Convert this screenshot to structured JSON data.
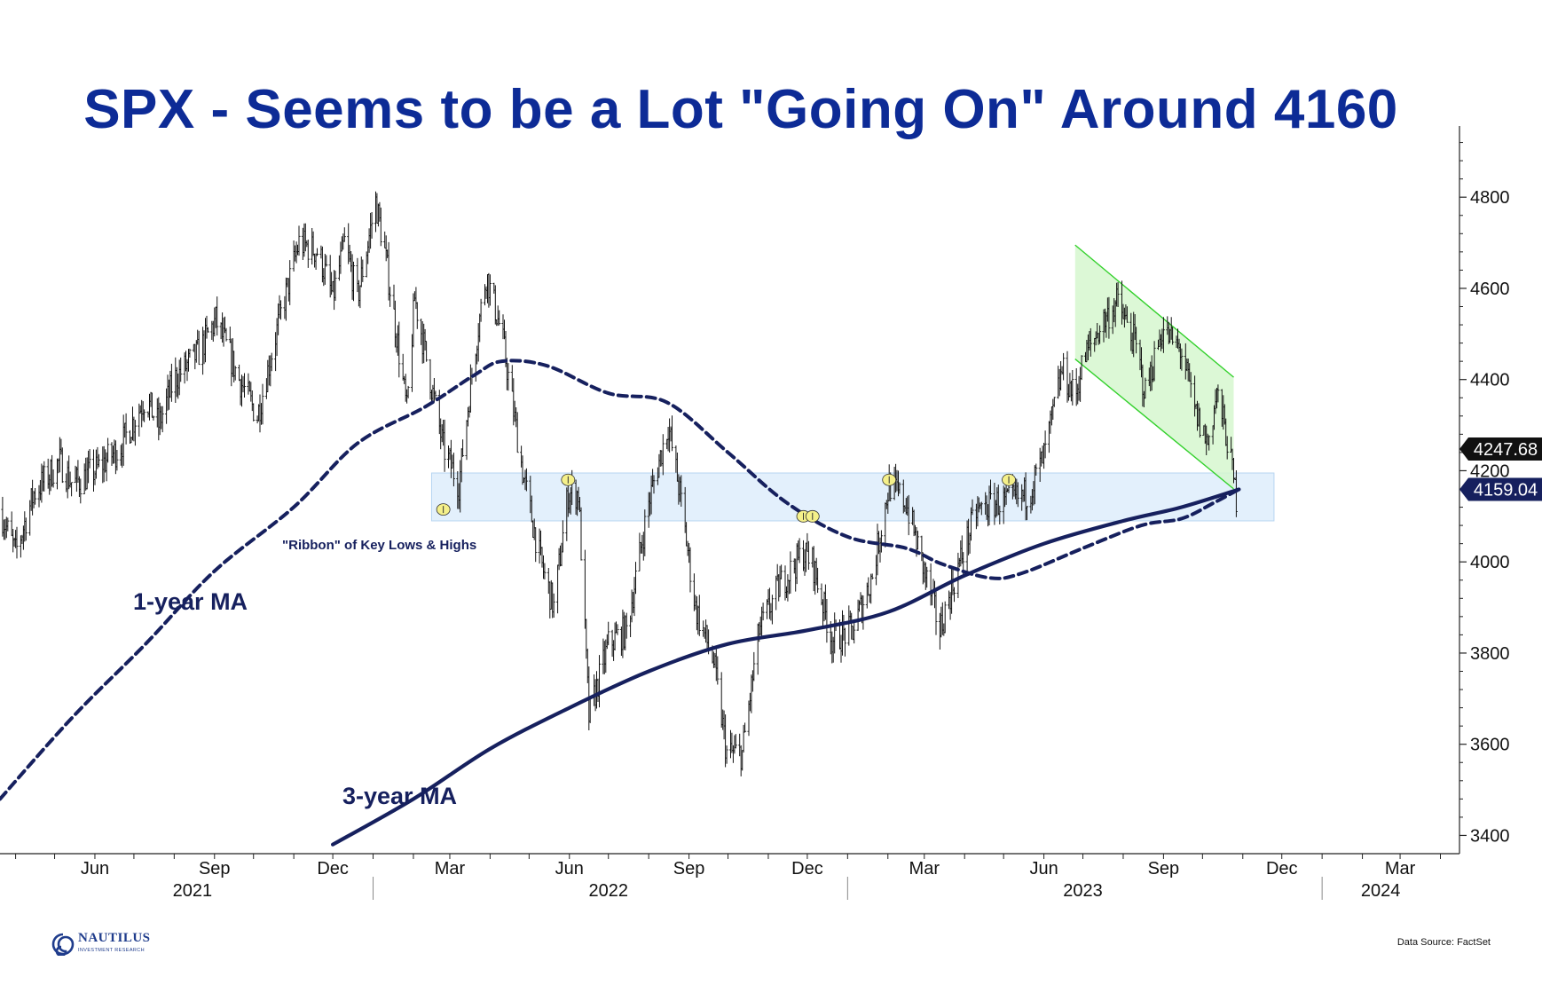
{
  "title": "SPX - Seems to be a Lot \"Going On\" Around 4160",
  "source_note": "Data Source: FactSet",
  "logo": {
    "name": "NAUTILUS",
    "tagline": "INVESTMENT RESEARCH"
  },
  "colors": {
    "title": "#0d2b96",
    "ma": "#16205e",
    "ribbon_fill": "#e3f0fc",
    "ribbon_stroke": "#b7d5f2",
    "channel_fill": "#d6f7cf",
    "channel_stroke": "#33d12c",
    "marker": "#f5f08a",
    "price": "#111111"
  },
  "annotations": {
    "ribbon": "\"Ribbon\" of Key Lows & Highs",
    "ma1": "1-year MA",
    "ma3": "3-year MA"
  },
  "chart_data": {
    "type": "line",
    "title": "SPX - Seems to be a Lot \"Going On\" Around 4160",
    "xlabel": "",
    "ylabel": "",
    "x_range": [
      "2021-03-20",
      "2024-04-15"
    ],
    "ylim": [
      3360,
      4960
    ],
    "y_ticks": [
      3400,
      3600,
      3800,
      4000,
      4200,
      4400,
      4600,
      4800
    ],
    "x_month_ticks": [
      {
        "label": "Jun",
        "date": "2021-06-01"
      },
      {
        "label": "Sep",
        "date": "2021-09-01"
      },
      {
        "label": "Dec",
        "date": "2021-12-01"
      },
      {
        "label": "Mar",
        "date": "2022-03-01"
      },
      {
        "label": "Jun",
        "date": "2022-06-01"
      },
      {
        "label": "Sep",
        "date": "2022-09-01"
      },
      {
        "label": "Dec",
        "date": "2022-12-01"
      },
      {
        "label": "Mar",
        "date": "2023-03-01"
      },
      {
        "label": "Jun",
        "date": "2023-06-01"
      },
      {
        "label": "Sep",
        "date": "2023-09-01"
      },
      {
        "label": "Dec",
        "date": "2023-12-01"
      },
      {
        "label": "Mar",
        "date": "2024-03-01"
      }
    ],
    "x_year_labels": [
      {
        "label": "2021",
        "date": "2021-08-15"
      },
      {
        "label": "2022",
        "date": "2022-07-01"
      },
      {
        "label": "2023",
        "date": "2023-07-01"
      },
      {
        "label": "2024",
        "date": "2024-02-15"
      }
    ],
    "year_boundaries": [
      "2022-01-01",
      "2023-01-01",
      "2024-01-01"
    ],
    "last_values": [
      {
        "label": "4247.68",
        "value": 4247.68
      },
      {
        "label": "4159.04",
        "value": 4159.04
      }
    ],
    "ribbon": {
      "from": "2022-02-15",
      "to": "2023-11-25",
      "low": 4090,
      "high": 4195
    },
    "channel": {
      "upper_start": {
        "date": "2023-06-25",
        "value": 4695
      },
      "upper_end": {
        "date": "2023-10-25",
        "value": 4405
      },
      "lower_start": {
        "date": "2023-06-25",
        "value": 4445
      },
      "lower_end": {
        "date": "2023-10-25",
        "value": 4160
      }
    },
    "key_points": [
      {
        "date": "2022-02-24",
        "value": 4115
      },
      {
        "date": "2022-05-31",
        "value": 4180
      },
      {
        "date": "2022-11-28",
        "value": 4100
      },
      {
        "date": "2022-12-05",
        "value": 4100
      },
      {
        "date": "2023-02-02",
        "value": 4180
      },
      {
        "date": "2023-05-05",
        "value": 4180
      }
    ],
    "series": [
      {
        "name": "SPX",
        "style": "daily-bars",
        "points": [
          [
            "2021-03-20",
            4115
          ],
          [
            "2021-04-01",
            4020
          ],
          [
            "2021-04-15",
            4150
          ],
          [
            "2021-05-05",
            4220
          ],
          [
            "2021-05-15",
            4170
          ],
          [
            "2021-06-01",
            4200
          ],
          [
            "2021-06-20",
            4250
          ],
          [
            "2021-07-10",
            4360
          ],
          [
            "2021-07-20",
            4300
          ],
          [
            "2021-08-01",
            4400
          ],
          [
            "2021-08-20",
            4460
          ],
          [
            "2021-09-02",
            4530
          ],
          [
            "2021-09-20",
            4400
          ],
          [
            "2021-10-04",
            4320
          ],
          [
            "2021-10-20",
            4520
          ],
          [
            "2021-11-05",
            4700
          ],
          [
            "2021-11-20",
            4680
          ],
          [
            "2021-12-01",
            4580
          ],
          [
            "2021-12-10",
            4700
          ],
          [
            "2021-12-20",
            4580
          ],
          [
            "2022-01-03",
            4790
          ],
          [
            "2022-01-10",
            4680
          ],
          [
            "2022-01-20",
            4480
          ],
          [
            "2022-01-27",
            4330
          ],
          [
            "2022-02-02",
            4580
          ],
          [
            "2022-02-14",
            4400
          ],
          [
            "2022-02-24",
            4250
          ],
          [
            "2022-03-08",
            4170
          ],
          [
            "2022-03-20",
            4460
          ],
          [
            "2022-03-29",
            4630
          ],
          [
            "2022-04-10",
            4500
          ],
          [
            "2022-04-27",
            4180
          ],
          [
            "2022-05-10",
            4000
          ],
          [
            "2022-05-20",
            3900
          ],
          [
            "2022-05-31",
            4150
          ],
          [
            "2022-06-08",
            4150
          ],
          [
            "2022-06-16",
            3660
          ],
          [
            "2022-07-01",
            3820
          ],
          [
            "2022-07-15",
            3850
          ],
          [
            "2022-08-01",
            4130
          ],
          [
            "2022-08-16",
            4300
          ],
          [
            "2022-08-25",
            4150
          ],
          [
            "2022-09-06",
            3900
          ],
          [
            "2022-09-20",
            3780
          ],
          [
            "2022-09-30",
            3580
          ],
          [
            "2022-10-12",
            3580
          ],
          [
            "2022-10-25",
            3850
          ],
          [
            "2022-11-10",
            3950
          ],
          [
            "2022-11-28",
            4020
          ],
          [
            "2022-12-05",
            4000
          ],
          [
            "2022-12-20",
            3830
          ],
          [
            "2023-01-05",
            3850
          ],
          [
            "2023-01-20",
            3970
          ],
          [
            "2023-02-02",
            4170
          ],
          [
            "2023-02-15",
            4130
          ],
          [
            "2023-03-01",
            3980
          ],
          [
            "2023-03-13",
            3850
          ],
          [
            "2023-03-25",
            3970
          ],
          [
            "2023-04-10",
            4110
          ],
          [
            "2023-04-25",
            4130
          ],
          [
            "2023-05-05",
            4130
          ],
          [
            "2023-05-20",
            4150
          ],
          [
            "2023-06-01",
            4230
          ],
          [
            "2023-06-15",
            4420
          ],
          [
            "2023-06-25",
            4360
          ],
          [
            "2023-07-01",
            4440
          ],
          [
            "2023-07-15",
            4520
          ],
          [
            "2023-07-27",
            4570
          ],
          [
            "2023-08-10",
            4480
          ],
          [
            "2023-08-18",
            4370
          ],
          [
            "2023-08-31",
            4510
          ],
          [
            "2023-09-15",
            4460
          ],
          [
            "2023-09-25",
            4330
          ],
          [
            "2023-10-05",
            4260
          ],
          [
            "2023-10-12",
            4370
          ],
          [
            "2023-10-20",
            4270
          ],
          [
            "2023-10-27",
            4140
          ],
          [
            "2023-10-29",
            4247.68
          ]
        ]
      },
      {
        "name": "1-year MA",
        "style": "dashed",
        "points": [
          [
            "2021-03-20",
            3480
          ],
          [
            "2021-05-15",
            3660
          ],
          [
            "2021-07-10",
            3820
          ],
          [
            "2021-09-01",
            3980
          ],
          [
            "2021-11-01",
            4120
          ],
          [
            "2021-12-20",
            4260
          ],
          [
            "2022-02-10",
            4340
          ],
          [
            "2022-03-20",
            4410
          ],
          [
            "2022-04-10",
            4440
          ],
          [
            "2022-05-15",
            4430
          ],
          [
            "2022-07-01",
            4370
          ],
          [
            "2022-08-15",
            4350
          ],
          [
            "2022-10-01",
            4240
          ],
          [
            "2022-11-15",
            4130
          ],
          [
            "2023-01-01",
            4055
          ],
          [
            "2023-02-15",
            4030
          ],
          [
            "2023-03-15",
            3995
          ],
          [
            "2023-04-20",
            3965
          ],
          [
            "2023-05-15",
            3975
          ],
          [
            "2023-07-01",
            4030
          ],
          [
            "2023-08-15",
            4080
          ],
          [
            "2023-09-15",
            4095
          ],
          [
            "2023-10-10",
            4130
          ],
          [
            "2023-10-29",
            4159.04
          ]
        ]
      },
      {
        "name": "3-year MA",
        "style": "solid",
        "points": [
          [
            "2021-12-01",
            3380
          ],
          [
            "2022-02-01",
            3480
          ],
          [
            "2022-04-01",
            3590
          ],
          [
            "2022-06-01",
            3680
          ],
          [
            "2022-08-01",
            3760
          ],
          [
            "2022-10-01",
            3820
          ],
          [
            "2022-12-01",
            3850
          ],
          [
            "2023-02-01",
            3890
          ],
          [
            "2023-04-01",
            3970
          ],
          [
            "2023-06-01",
            4040
          ],
          [
            "2023-08-01",
            4090
          ],
          [
            "2023-09-15",
            4120
          ],
          [
            "2023-10-29",
            4159.04
          ]
        ]
      }
    ]
  }
}
